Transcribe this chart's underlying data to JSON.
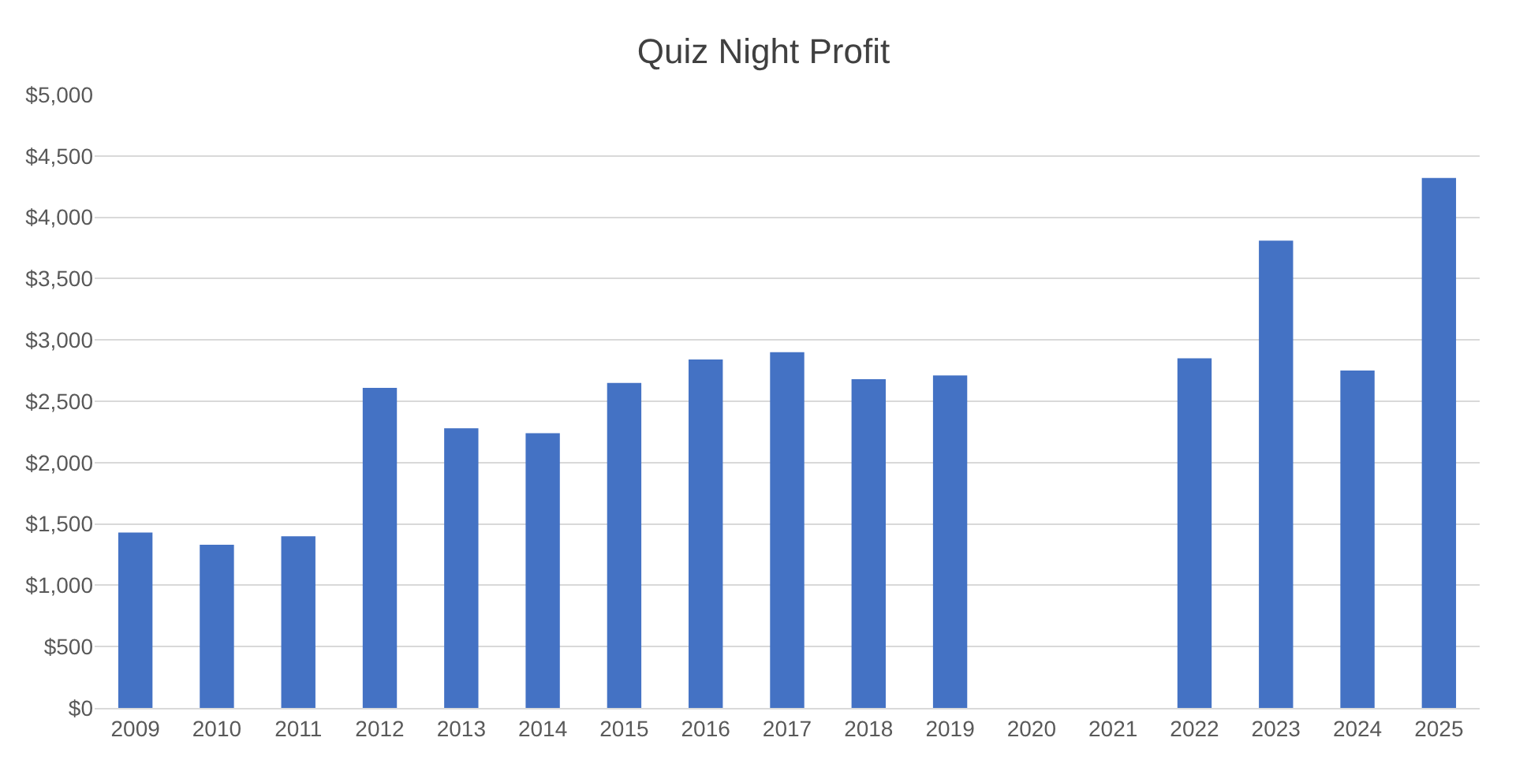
{
  "chart_data": {
    "type": "bar",
    "title": "Quiz Night Profit",
    "categories": [
      "2009",
      "2010",
      "2011",
      "2012",
      "2013",
      "2014",
      "2015",
      "2016",
      "2017",
      "2018",
      "2019",
      "2020",
      "2021",
      "2022",
      "2023",
      "2024",
      "2025"
    ],
    "values": [
      1430,
      1330,
      1400,
      2610,
      2280,
      2240,
      2650,
      2840,
      2900,
      2680,
      2710,
      null,
      null,
      2850,
      3810,
      2750,
      4320
    ],
    "color": "#4472c4",
    "ylim": [
      0,
      5000
    ],
    "yticks": [
      {
        "value": 0,
        "label": "$0"
      },
      {
        "value": 500,
        "label": "$500"
      },
      {
        "value": 1000,
        "label": "$1,000"
      },
      {
        "value": 1500,
        "label": "$1,500"
      },
      {
        "value": 2000,
        "label": "$2,000"
      },
      {
        "value": 2500,
        "label": "$2,500"
      },
      {
        "value": 3000,
        "label": "$3,000"
      },
      {
        "value": 3500,
        "label": "$3,500"
      },
      {
        "value": 4000,
        "label": "$4,000"
      },
      {
        "value": 4500,
        "label": "$4,500"
      },
      {
        "value": 5000,
        "label": "$5,000"
      }
    ],
    "grid": "y"
  }
}
